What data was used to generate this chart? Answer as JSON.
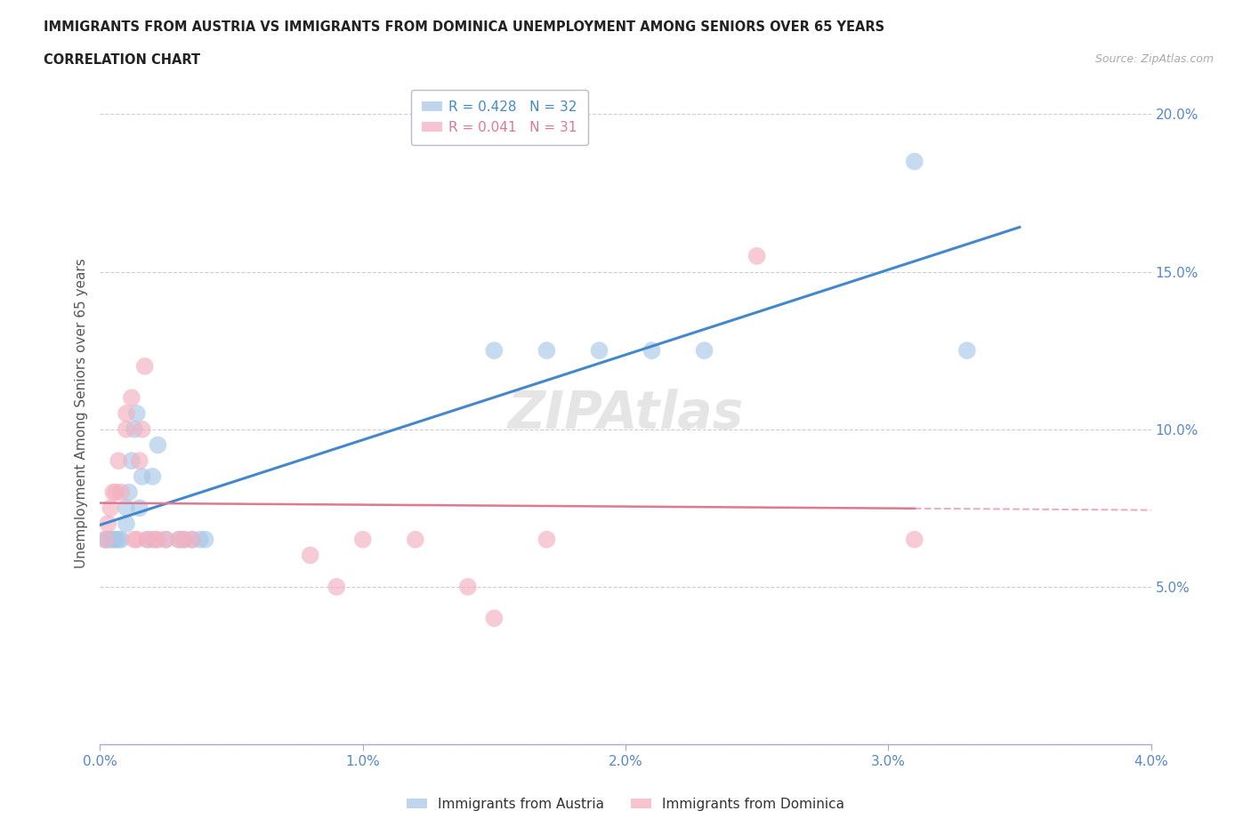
{
  "title_line1": "IMMIGRANTS FROM AUSTRIA VS IMMIGRANTS FROM DOMINICA UNEMPLOYMENT AMONG SENIORS OVER 65 YEARS",
  "title_line2": "CORRELATION CHART",
  "source": "Source: ZipAtlas.com",
  "ylabel": "Unemployment Among Seniors over 65 years",
  "watermark": "ZIPAtlas",
  "legend_austria": "Immigrants from Austria",
  "legend_dominica": "Immigrants from Dominica",
  "r_austria": 0.428,
  "n_austria": 32,
  "r_dominica": 0.041,
  "n_dominica": 31,
  "austria_color": "#a8c8e8",
  "dominica_color": "#f4b0c0",
  "austria_line_color": "#4488cc",
  "dominica_line_color": "#e07890",
  "xlim": [
    0.0,
    0.04
  ],
  "ylim": [
    0.0,
    0.21
  ],
  "xticks": [
    0.0,
    0.01,
    0.02,
    0.03,
    0.04
  ],
  "yticks": [
    0.0,
    0.05,
    0.1,
    0.15,
    0.2
  ],
  "xtick_labels": [
    "0.0%",
    "1.0%",
    "2.0%",
    "3.0%",
    "4.0%"
  ],
  "ytick_labels": [
    "",
    "5.0%",
    "10.0%",
    "15.0%",
    "20.0%"
  ],
  "austria_x": [
    0.0002,
    0.0003,
    0.0004,
    0.0005,
    0.0006,
    0.0007,
    0.0008,
    0.001,
    0.001,
    0.0011,
    0.0012,
    0.0013,
    0.0014,
    0.0015,
    0.0016,
    0.0018,
    0.002,
    0.0021,
    0.0022,
    0.0025,
    0.003,
    0.0032,
    0.0035,
    0.0038,
    0.004,
    0.015,
    0.017,
    0.019,
    0.021,
    0.023,
    0.031,
    0.033
  ],
  "austria_y": [
    0.065,
    0.065,
    0.065,
    0.065,
    0.065,
    0.065,
    0.065,
    0.07,
    0.075,
    0.08,
    0.09,
    0.1,
    0.105,
    0.075,
    0.085,
    0.065,
    0.085,
    0.065,
    0.095,
    0.065,
    0.065,
    0.065,
    0.065,
    0.065,
    0.065,
    0.125,
    0.125,
    0.125,
    0.125,
    0.125,
    0.185,
    0.125
  ],
  "dominica_x": [
    0.0002,
    0.0003,
    0.0004,
    0.0005,
    0.0006,
    0.0007,
    0.0008,
    0.001,
    0.001,
    0.0012,
    0.0013,
    0.0014,
    0.0015,
    0.0016,
    0.0017,
    0.0018,
    0.002,
    0.0022,
    0.0025,
    0.003,
    0.0032,
    0.0035,
    0.008,
    0.009,
    0.01,
    0.012,
    0.014,
    0.015,
    0.017,
    0.025,
    0.031
  ],
  "dominica_y": [
    0.065,
    0.07,
    0.075,
    0.08,
    0.08,
    0.09,
    0.08,
    0.1,
    0.105,
    0.11,
    0.065,
    0.065,
    0.09,
    0.1,
    0.12,
    0.065,
    0.065,
    0.065,
    0.065,
    0.065,
    0.065,
    0.065,
    0.06,
    0.05,
    0.065,
    0.065,
    0.05,
    0.04,
    0.065,
    0.155,
    0.065
  ]
}
